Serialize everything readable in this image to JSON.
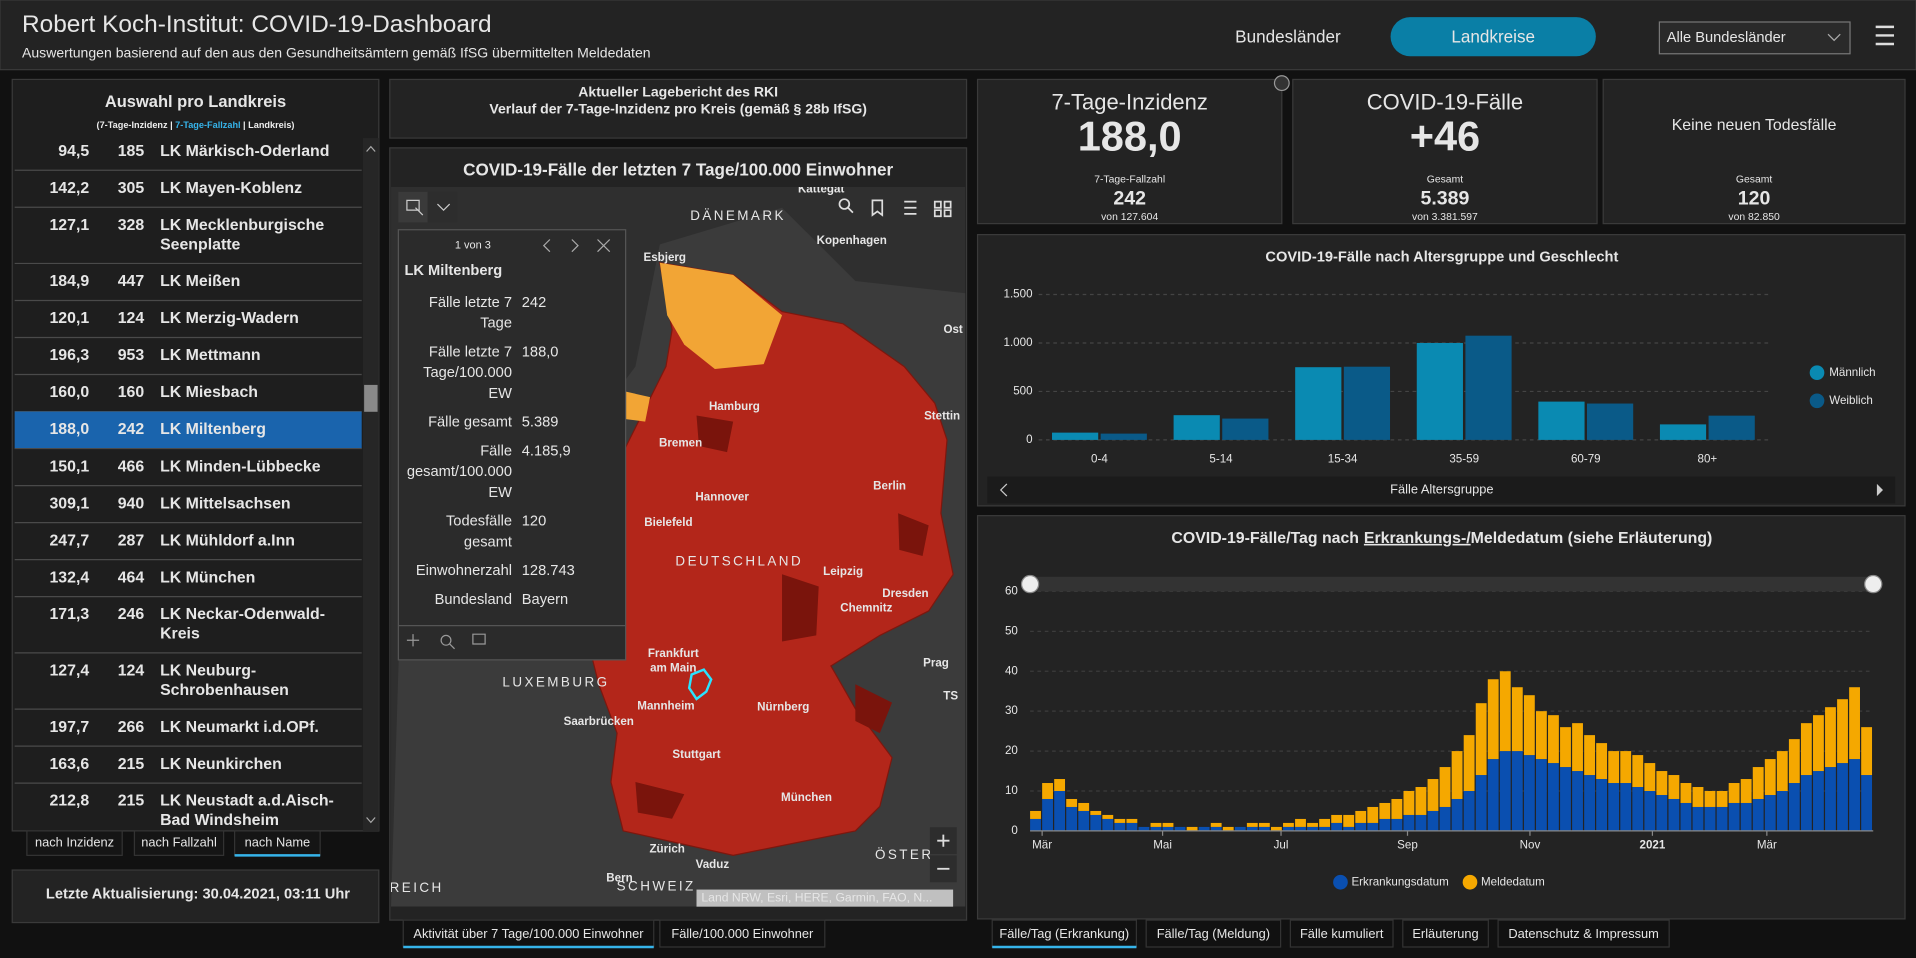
{
  "header": {
    "title": "Robert Koch-Institut: COVID-19-Dashboard",
    "subtitle": "Auswertungen basierend auf den aus den Gesundheitsämtern gemäß IfSG übermittelten Meldedaten",
    "tabs": [
      "Bundesländer",
      "Landkreise"
    ],
    "dropdown": "Alle Bundesländer"
  },
  "list": {
    "title": "Auswahl pro Landkreis",
    "legend": [
      "(7-Tage-Inzidenz |",
      "7-Tage-Fallzahl",
      "| Landkreis)"
    ],
    "selected_row": 7,
    "rows": [
      [
        "94,5",
        185,
        "LK Märkisch-Oderland"
      ],
      [
        "142,2",
        305,
        "LK Mayen-Koblenz"
      ],
      [
        "127,1",
        328,
        [
          "LK Mecklenburgische",
          "Seenplatte"
        ]
      ],
      [
        "184,9",
        447,
        "LK Meißen"
      ],
      [
        "120,1",
        124,
        "LK Merzig-Wadern"
      ],
      [
        "196,3",
        953,
        "LK Mettmann"
      ],
      [
        "160,0",
        160,
        "LK Miesbach"
      ],
      [
        "188,0",
        242,
        "LK Miltenberg"
      ],
      [
        "150,1",
        466,
        "LK Minden-Lübbecke"
      ],
      [
        "309,1",
        940,
        "LK Mittelsachsen"
      ],
      [
        "247,7",
        287,
        "LK Mühldorf a.Inn"
      ],
      [
        "132,4",
        464,
        "LK München"
      ],
      [
        "171,3",
        246,
        [
          "LK Neckar-Odenwald-",
          "Kreis"
        ]
      ],
      [
        "127,4",
        124,
        [
          "LK Neuburg-",
          "Schrobenhausen"
        ]
      ],
      [
        "197,7",
        266,
        "LK Neumarkt i.d.OPf."
      ],
      [
        "163,6",
        215,
        "LK Neunkirchen"
      ],
      [
        "212,8",
        215,
        [
          "LK Neustadt a.d.Aisch-",
          "Bad Windsheim"
        ]
      ]
    ],
    "sort_buttons": [
      "nach Inzidenz",
      "nach Fallzahl",
      "nach Name"
    ],
    "active_sort": 2,
    "update": "Letzte Aktualisierung: 30.04.2021, 03:11 Uhr"
  },
  "report": {
    "line1": "Aktueller Lagebericht des RKI",
    "line2": "Verlauf der 7-Tage-Inzidenz pro Kreis (gemäß § 28b IfSG)"
  },
  "map": {
    "title": "COVID-19-Fälle der letzten 7 Tage/100.000 Einwohner",
    "labels": [
      "Kattegat",
      "DÄNEMARK",
      "Esbjerg",
      "Kopenhagen",
      "Ost",
      "Hamburg",
      "Stettin",
      "Bremen",
      "Berlin",
      "Hannover",
      "Bielefeld",
      "DEUTSCHLAND",
      "Leipzig",
      "Dresden",
      "Chemnitz",
      "Prag",
      [
        "Frankfurt",
        "am Main"
      ],
      "LUXEMBURG",
      "Mannheim",
      "Nürnberg",
      "Saarbrücken",
      "TS",
      "Stuttgart",
      "München",
      "Zürich",
      "ÖSTER",
      "Bern",
      "SCHWEIZ",
      "Vaduz",
      "REICH"
    ],
    "attribution": "Land NRW, Esri, HERE, Garmin, FAO, N...",
    "popup": {
      "pager": "1 von 3",
      "name": "LK Miltenberg",
      "rows": [
        [
          [
            "Fälle letzte 7",
            "Tage"
          ],
          "242"
        ],
        [
          [
            "Fälle letzte 7",
            "Tage/100.000",
            "EW"
          ],
          "188,0"
        ],
        [
          [
            "Fälle gesamt"
          ],
          "5.389"
        ],
        [
          [
            "Fälle",
            "gesamt/100.000",
            "EW"
          ],
          "4.185,9"
        ],
        [
          [
            "Todesfälle",
            "gesamt"
          ],
          "120"
        ],
        [
          [
            "Einwohnerzahl"
          ],
          "128.743"
        ],
        [
          [
            "Bundesland"
          ],
          "Bayern"
        ]
      ]
    },
    "tabs": [
      "Aktivität über 7 Tage/100.000 Einwohner",
      "Fälle/100.000 Einwohner"
    ],
    "active_tab": 0
  },
  "kpis": [
    {
      "title": "7-Tage-Inzidenz",
      "value": "188,0",
      "color": "#ffffff",
      "sub_label": "7-Tage-Fallzahl",
      "sub_value": "242",
      "sub_note": "von 127.604"
    },
    {
      "title": "COVID-19-Fälle",
      "value": "+46",
      "color": "#36b4ea",
      "sub_label": "Gesamt",
      "sub_value": "5.389",
      "sub_note": "von 3.381.597"
    },
    {
      "message": "Keine neuen Todesfälle",
      "sub_label": "Gesamt",
      "sub_value": "120",
      "sub_note": "von 82.850"
    }
  ],
  "chart_data": [
    {
      "type": "bar",
      "title": "COVID-19-Fälle nach Altersgruppe und Geschlecht",
      "categories": [
        "0-4",
        "5-14",
        "15-34",
        "35-59",
        "60-79",
        "80+"
      ],
      "series": [
        {
          "name": "Männlich",
          "color": "#0a8ab2",
          "values": [
            75,
            255,
            750,
            1000,
            395,
            160
          ]
        },
        {
          "name": "Weiblich",
          "color": "#0a5a88",
          "values": [
            65,
            220,
            755,
            1075,
            375,
            250
          ]
        }
      ],
      "ylim": [
        0,
        1500
      ],
      "yticks": [
        0,
        500,
        {
          "value": 1000,
          "label": "1.000"
        },
        {
          "value": 1500,
          "label": "1.500"
        }
      ],
      "grid": true,
      "legend": "right",
      "x_label": "Fälle Altersgruppe"
    },
    {
      "type": "stacked_bar",
      "title": [
        "COVID-19-Fälle/Tag nach",
        "Erkrankungs-/",
        "Meldedatum (siehe Erläuterung)"
      ],
      "x": [
        0,
        6,
        12,
        18,
        24,
        30,
        36,
        42,
        48,
        54,
        60,
        66,
        72,
        78,
        84,
        90,
        96,
        102,
        108,
        114,
        120,
        126,
        132,
        138,
        144,
        150,
        156,
        162,
        168,
        174,
        180,
        186,
        192,
        198,
        204,
        210,
        216,
        222,
        228,
        234,
        240,
        246,
        252,
        258,
        264,
        270,
        276,
        282,
        288,
        294,
        300,
        306,
        312,
        318,
        324,
        330,
        336,
        342,
        348,
        354,
        360,
        366,
        372,
        378,
        384,
        390,
        396,
        402,
        408,
        414
      ],
      "series": [
        {
          "name": "Erkrankungsdatum",
          "color": "#0a4fb0",
          "values": [
            3,
            8,
            10,
            6,
            5,
            4,
            3,
            2,
            2,
            1,
            1,
            1,
            1,
            0,
            1,
            1,
            0,
            1,
            1,
            1,
            0,
            1,
            1,
            1,
            1,
            2,
            1,
            2,
            2,
            3,
            3,
            4,
            4,
            5,
            6,
            8,
            10,
            14,
            18,
            20,
            20,
            19,
            18,
            17,
            16,
            15,
            14,
            13,
            12,
            12,
            11,
            10,
            9,
            8,
            7,
            6,
            6,
            6,
            7,
            7,
            8,
            9,
            10,
            12,
            14,
            15,
            16,
            17,
            18,
            14
          ]
        },
        {
          "name": "Meldedatum",
          "color": "#f5a800",
          "values": [
            2,
            4,
            3,
            2,
            2,
            1,
            1,
            1,
            1,
            0,
            1,
            1,
            0,
            1,
            0,
            1,
            1,
            0,
            1,
            1,
            1,
            1,
            2,
            1,
            2,
            2,
            3,
            3,
            4,
            4,
            5,
            6,
            7,
            8,
            10,
            12,
            14,
            18,
            20,
            20,
            16,
            15,
            12,
            12,
            10,
            12,
            10,
            9,
            8,
            8,
            8,
            7,
            6,
            6,
            5,
            5,
            4,
            4,
            5,
            6,
            8,
            9,
            10,
            11,
            13,
            14,
            15,
            16,
            18,
            12
          ]
        }
      ],
      "xlim": [
        0,
        420
      ],
      "xticks": [
        {
          "value": 6,
          "label": "Mär"
        },
        {
          "value": 66,
          "label": "Mai"
        },
        {
          "value": 125,
          "label": "Jul"
        },
        {
          "value": 188,
          "label": "Sep"
        },
        {
          "value": 249,
          "label": "Nov"
        },
        {
          "value": 310,
          "label": "2021"
        },
        {
          "value": 367,
          "label": "Mär"
        }
      ],
      "ylim": [
        0,
        60
      ],
      "yticks": [
        0,
        10,
        20,
        30,
        40,
        50,
        60
      ],
      "grid": true,
      "legend": "bottom"
    }
  ],
  "tabs_right": [
    "Fälle/Tag (Erkrankung)",
    "Fälle/Tag (Meldung)",
    "Fälle kumuliert",
    "Erläuterung",
    "Datenschutz & Impressum"
  ],
  "active_tab_right": 0
}
